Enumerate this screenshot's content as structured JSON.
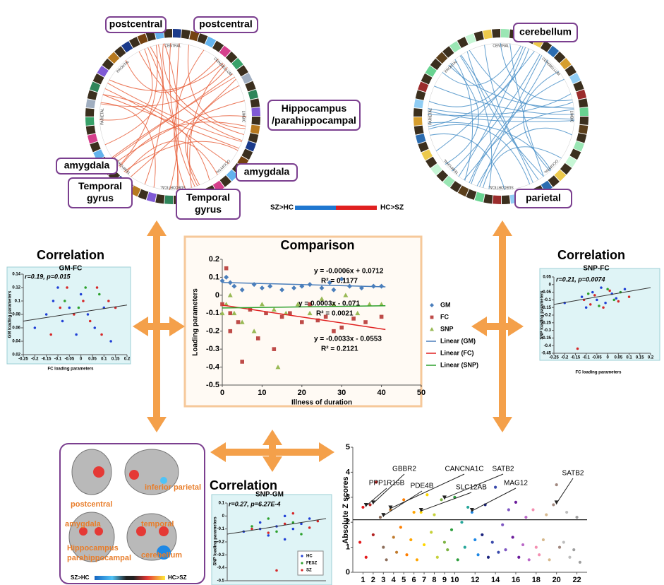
{
  "headings": {
    "left": "Correlation",
    "center": "Comparison",
    "right": "Correlation",
    "bottom": "Correlation"
  },
  "callouts": [
    [
      "postcentral"
    ],
    [
      "postcentral"
    ],
    [
      "Hippocampus",
      "/parahippocampal"
    ],
    [
      "amygdala"
    ],
    [
      "amygdala"
    ],
    [
      "Temporal",
      "gyrus"
    ],
    [
      "Temporal",
      "gyrus"
    ],
    [
      "cerebellum"
    ],
    [
      "parietal"
    ]
  ],
  "ring_labels": [
    "CENTRAL",
    "CEREBELLUM",
    "LIMBIC",
    "OCCIPITAL",
    "SUBCORTICAL",
    "TEMPORAL",
    "PARIETAL",
    "FRONTAL"
  ],
  "circle_colorbar": [
    "SZ>HC",
    "HC>SZ"
  ],
  "brain_panel": {
    "labels": [
      "postcentral",
      "inferior parietal",
      "amygdala",
      "temporal",
      "Hippocampus",
      "parahippocampal",
      "cerebellum"
    ],
    "colorbar": [
      "SZ>HC",
      "HC>SZ"
    ]
  },
  "chart_data": [
    {
      "type": "scatter",
      "xlabel": "Illness  of duration",
      "ylabel": "Loading parameters",
      "xlim": [
        0,
        50
      ],
      "xticks": [
        0,
        10,
        20,
        30,
        40,
        50
      ],
      "ylim": [
        -0.5,
        0.2
      ],
      "yticks": [
        0.2,
        0.1,
        0,
        -0.1,
        -0.2,
        -0.3,
        -0.4,
        -0.5
      ],
      "series": [
        {
          "name": "GM",
          "color": "#4a7ebb",
          "marker": "diamond",
          "x": [
            0,
            1,
            2,
            3,
            5,
            8,
            10,
            12,
            15,
            18,
            20,
            22,
            25,
            27,
            28,
            30,
            32,
            35,
            38,
            40
          ],
          "values": [
            0.08,
            0.1,
            0.07,
            0.05,
            0.03,
            0.06,
            0.04,
            0.05,
            0.03,
            0.04,
            0.05,
            0.06,
            0.04,
            0.07,
            0.03,
            0.09,
            0.05,
            0.04,
            0.05,
            0.05
          ]
        },
        {
          "name": "FC",
          "color": "#be4b48",
          "marker": "square",
          "x": [
            0,
            1,
            2,
            2,
            4,
            5,
            7,
            9,
            11,
            13,
            15,
            17,
            20,
            22,
            24,
            26,
            28,
            30,
            33,
            36,
            40
          ],
          "values": [
            -0.05,
            0.15,
            -0.1,
            -0.2,
            -0.15,
            -0.37,
            -0.08,
            -0.24,
            -0.1,
            -0.3,
            -0.12,
            -0.1,
            -0.15,
            -0.05,
            -0.14,
            -0.12,
            -0.2,
            -0.18,
            -0.13,
            -0.15,
            -0.12
          ]
        },
        {
          "name": "SNP",
          "color": "#98b954",
          "marker": "triangle",
          "x": [
            0,
            1,
            2,
            3,
            5,
            8,
            10,
            13,
            14,
            16,
            19,
            22,
            25,
            28,
            31,
            34,
            37,
            40
          ],
          "values": [
            -0.1,
            -0.05,
            0,
            -0.1,
            -0.15,
            -0.2,
            -0.05,
            -0.08,
            -0.4,
            -0.1,
            -0.05,
            -0.1,
            -0.02,
            -0.05,
            0,
            -0.1,
            -0.05,
            -0.05
          ]
        }
      ],
      "trendlines": [
        {
          "name": "Linear (GM)",
          "color": "#4a7ebb",
          "x": [
            0,
            41
          ],
          "values": [
            0.0712,
            0.0466
          ]
        },
        {
          "name": "Linear (FC)",
          "color": "#e02020",
          "x": [
            0,
            41
          ],
          "values": [
            -0.0553,
            -0.1906
          ]
        },
        {
          "name": "Linear (SNP)",
          "color": "#2ca02c",
          "x": [
            0,
            41
          ],
          "values": [
            -0.071,
            -0.0587
          ]
        }
      ],
      "equations": [
        "y = -0.0006x  + 0.0712",
        "R² = 0.1177",
        "y = 0.0003x  - 0.071",
        "R² = 0.0021",
        "y = -0.0033x  - 0.0553",
        "R² = 0.2121"
      ]
    },
    {
      "type": "scatter",
      "title": "GM-FC",
      "stat": "r=0.19, p=0.015",
      "xlabel": "FC loading parameters",
      "ylabel": "GM loading parameters",
      "xlim": [
        -0.25,
        0.2
      ],
      "xticks": [
        -0.25,
        -0.2,
        -0.15,
        -0.1,
        -0.05,
        0,
        0.05,
        0.1,
        0.15,
        0.2
      ],
      "ylim": [
        0.02,
        0.14
      ],
      "yticks": [
        0.02,
        0.04,
        0.06,
        0.08,
        0.1,
        0.12,
        0.14
      ],
      "series": [
        {
          "color": "#1f3fd6",
          "x": [
            -0.2,
            -0.15,
            -0.12,
            -0.08,
            -0.05,
            -0.02,
            0,
            0.03,
            0.06,
            0.1,
            0.13,
            -0.1
          ],
          "values": [
            0.06,
            0.08,
            0.1,
            0.07,
            0.09,
            0.05,
            0.11,
            0.08,
            0.06,
            0.09,
            0.04,
            0.12
          ]
        },
        {
          "color": "#d62728",
          "x": [
            -0.13,
            -0.09,
            -0.06,
            -0.03,
            0.01,
            0.04,
            0.07,
            0.09,
            0.12,
            0.15
          ],
          "values": [
            0.05,
            0.09,
            0.12,
            0.08,
            0.1,
            0.07,
            0.12,
            0.05,
            0.1,
            0.09
          ]
        },
        {
          "color": "#2ca02c",
          "x": [
            -0.07,
            -0.01,
            0.02,
            0.08
          ],
          "values": [
            0.1,
            0.09,
            0.12,
            0.11
          ]
        }
      ],
      "fit": {
        "x": [
          -0.25,
          0.2
        ],
        "values": [
          0.07,
          0.094
        ]
      }
    },
    {
      "type": "scatter",
      "title": "SNP-FC",
      "stat": "r=0.21, p=0.0074",
      "xlabel": "FC loading parameters",
      "ylabel": "SNP loading parameters",
      "xlim": [
        -0.25,
        0.2
      ],
      "xticks": [
        -0.25,
        -0.2,
        -0.15,
        -0.1,
        -0.05,
        0,
        0.05,
        0.1,
        0.15,
        0.2
      ],
      "ylim": [
        -0.45,
        0.05
      ],
      "yticks": [
        0.05,
        0,
        -0.05,
        -0.1,
        -0.15,
        -0.2,
        -0.25,
        -0.3,
        -0.35,
        -0.4,
        -0.45
      ],
      "series": [
        {
          "color": "#1f3fd6",
          "x": [
            -0.2,
            -0.12,
            -0.1,
            -0.07,
            -0.05,
            -0.03,
            -0.01,
            0.02,
            0.04,
            0.08
          ],
          "values": [
            -0.12,
            -0.08,
            -0.15,
            -0.05,
            -0.1,
            -0.02,
            -0.12,
            -0.06,
            -0.09,
            -0.03
          ]
        },
        {
          "color": "#d62728",
          "x": [
            -0.14,
            -0.11,
            -0.08,
            -0.06,
            -0.02,
            0.01,
            0.05,
            0.1
          ],
          "values": [
            -0.42,
            -0.1,
            -0.13,
            -0.07,
            -0.15,
            -0.04,
            -0.11,
            -0.08
          ]
        },
        {
          "color": "#2ca02c",
          "x": [
            -0.09,
            -0.04,
            0,
            0.03,
            0.06
          ],
          "values": [
            -0.06,
            -0.14,
            -0.03,
            -0.1,
            -0.05
          ]
        }
      ],
      "fit": {
        "x": [
          -0.25,
          0.2
        ],
        "values": [
          -0.13,
          -0.02
        ]
      }
    },
    {
      "type": "scatter",
      "title": "SNP-GM",
      "stat": "r=0.27, p=6.27E-4",
      "ylabel": "SNP loading parameters",
      "xlim": [
        0.02,
        0.14
      ],
      "ylim": [
        -0.5,
        0.1
      ],
      "yticks": [
        0.1,
        0,
        -0.1,
        -0.2,
        -0.3,
        -0.4,
        -0.5
      ],
      "series": [
        {
          "name": "HC",
          "color": "#1f3fd6",
          "x": [
            0.04,
            0.06,
            0.07,
            0.08,
            0.09,
            0.1,
            0.11,
            0.12,
            0.06,
            0.09
          ],
          "values": [
            -0.12,
            -0.05,
            -0.15,
            -0.08,
            0,
            -0.1,
            -0.06,
            -0.02,
            -0.1,
            -0.18
          ]
        },
        {
          "name": "FESZ",
          "color": "#2ca02c",
          "x": [
            0.05,
            0.07,
            0.08,
            0.1,
            0.11
          ],
          "values": [
            -0.08,
            -0.02,
            -0.12,
            -0.05,
            -0.14
          ]
        },
        {
          "name": "SZ",
          "color": "#d62728",
          "x": [
            0.05,
            0.07,
            0.08,
            0.09,
            0.1,
            0.12,
            0.13
          ],
          "values": [
            -0.1,
            -0.13,
            -0.42,
            -0.06,
            0.02,
            -0.09,
            -0.04
          ]
        }
      ],
      "fit": {
        "x": [
          0.02,
          0.14
        ],
        "values": [
          -0.14,
          -0.02
        ]
      }
    },
    {
      "type": "scatter",
      "ylabel": "Absolute Z scores",
      "xlim": [
        0,
        23
      ],
      "xticks": [
        1,
        2,
        3,
        4,
        5,
        6,
        7,
        8,
        9,
        10,
        12,
        14,
        16,
        18,
        20,
        22
      ],
      "ylim": [
        0,
        5
      ],
      "yticks": [
        0,
        1,
        2,
        3,
        4,
        5
      ],
      "threshold": 2.1,
      "series": [
        {
          "color": "#e41a1c",
          "x": [
            0.7,
            1,
            1.3
          ],
          "values": [
            1.2,
            2.6,
            0.6
          ]
        },
        {
          "color": "#b22222",
          "x": [
            1.7,
            2,
            2.3
          ],
          "values": [
            2.7,
            1.5,
            3.6
          ]
        },
        {
          "color": "#8c6d5a",
          "x": [
            2.7,
            3,
            3.3
          ],
          "values": [
            2.2,
            1,
            0.5
          ]
        },
        {
          "color": "#c07a2c",
          "x": [
            3.7,
            4,
            4.3
          ],
          "values": [
            2.5,
            1.4,
            0.8
          ]
        },
        {
          "color": "#ff7f00",
          "x": [
            4.7,
            5,
            5.3
          ],
          "values": [
            1.8,
            2.9,
            0.7
          ]
        },
        {
          "color": "#ffa500",
          "x": [
            5.7,
            6,
            6.3
          ],
          "values": [
            1.3,
            2.4,
            0.5
          ]
        },
        {
          "color": "#ffd700",
          "x": [
            6.7,
            7,
            7.3
          ],
          "values": [
            2.4,
            1.1,
            3.1
          ]
        },
        {
          "color": "#c6d13a",
          "x": [
            7.7,
            8,
            8.3
          ],
          "values": [
            1.6,
            2.3,
            0.6
          ]
        },
        {
          "color": "#7cb342",
          "x": [
            8.7,
            9,
            9.3
          ],
          "values": [
            2.9,
            1.2,
            0.9
          ]
        },
        {
          "color": "#2e9e3e",
          "x": [
            9.7,
            10,
            10.3
          ],
          "values": [
            1.7,
            3,
            0.5
          ]
        },
        {
          "color": "#26a69a",
          "x": [
            10.7,
            11,
            11.3
          ],
          "values": [
            2,
            1,
            2.6
          ]
        },
        {
          "color": "#1e88e5",
          "x": [
            11.7,
            12,
            12.3
          ],
          "values": [
            2.4,
            1.3,
            0.7
          ]
        },
        {
          "color": "#1a237e",
          "x": [
            12.7,
            13,
            13.3
          ],
          "values": [
            1.5,
            2.7,
            0.6
          ]
        },
        {
          "color": "#3949ab",
          "x": [
            13.7,
            14,
            14.3
          ],
          "values": [
            1.2,
            3.4,
            0.8
          ]
        },
        {
          "color": "#7e57c2",
          "x": [
            14.7,
            15,
            15.3
          ],
          "values": [
            1.9,
            0.9,
            2.5
          ]
        },
        {
          "color": "#6a1b9a",
          "x": [
            15.7,
            16,
            16.3
          ],
          "values": [
            1.4,
            2.8,
            0.6
          ]
        },
        {
          "color": "#ba68c8",
          "x": [
            16.7,
            17,
            17.3
          ],
          "values": [
            1.1,
            2.2,
            0.5
          ]
        },
        {
          "color": "#f48fb1",
          "x": [
            17.7,
            18,
            18.3
          ],
          "values": [
            2.5,
            1,
            0.7
          ]
        },
        {
          "color": "#d7b98e",
          "x": [
            18.7,
            19,
            19.3
          ],
          "values": [
            1.3,
            2.3,
            0.5
          ]
        },
        {
          "color": "#a1887f",
          "x": [
            19.7,
            20,
            20.3
          ],
          "values": [
            2.7,
            3.5,
            1
          ]
        },
        {
          "color": "#bdbdbd",
          "x": [
            20.7,
            21,
            21.3
          ],
          "values": [
            1.2,
            2.4,
            0.6
          ]
        },
        {
          "color": "#9e9e9e",
          "x": [
            21.7,
            22,
            22.3
          ],
          "values": [
            0.9,
            2.2,
            0.4
          ]
        }
      ],
      "annotations": [
        {
          "text": "PPP1R16B",
          "x": 1.3,
          "y": 2.6
        },
        {
          "text": "GBBR2",
          "x": 2,
          "y": 2.7
        },
        {
          "text": "PDE4B",
          "x": 3,
          "y": 2.2
        },
        {
          "text": "CANCNA1C",
          "x": 3.7,
          "y": 2.5
        },
        {
          "text": "SLC12AB",
          "x": 6.7,
          "y": 2.4
        },
        {
          "text": "SATB2",
          "x": 9,
          "y": 2.9
        },
        {
          "text": "MAG12",
          "x": 11.7,
          "y": 2.4
        },
        {
          "text": "SATB2",
          "x": 20,
          "y": 2.7
        }
      ]
    }
  ]
}
